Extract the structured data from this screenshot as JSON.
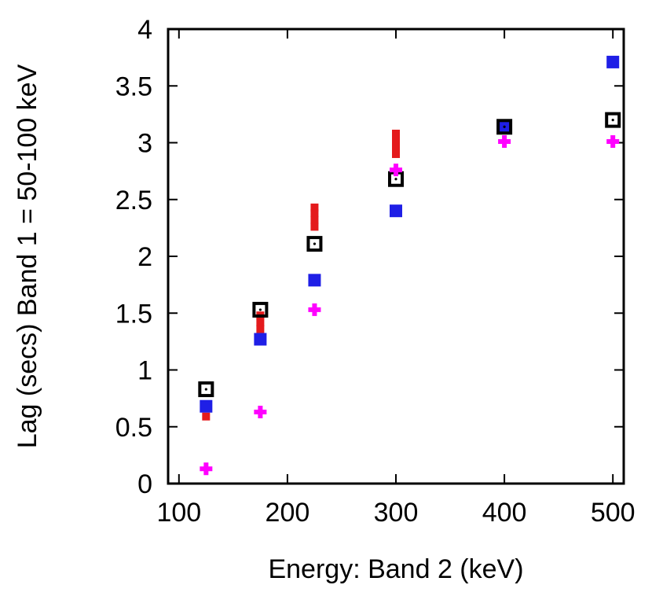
{
  "chart_data": {
    "type": "scatter",
    "title": "",
    "xlabel": "Energy: Band 2 (keV)",
    "ylabel": "Lag (secs) Band 1 = 50-100 keV",
    "xlim": [
      90,
      510
    ],
    "ylim": [
      0,
      4
    ],
    "xticks": [
      100,
      200,
      300,
      400,
      500
    ],
    "yticks": [
      0,
      0.5,
      1,
      1.5,
      2,
      2.5,
      3,
      3.5,
      4
    ],
    "xtick_labels": [
      "100",
      "200",
      "300",
      "400",
      "500"
    ],
    "ytick_labels": [
      "0",
      "0.5",
      "1",
      "1.5",
      "2",
      "2.5",
      "3",
      "3.5",
      "4"
    ],
    "grid": false,
    "legend": "none",
    "series": [
      {
        "name": "red-points",
        "marker": "small-square",
        "color": "#e41a1c",
        "points": [
          {
            "x": 125,
            "y": 0.59
          },
          {
            "x": 175,
            "y": 1.36
          },
          {
            "x": 175,
            "y": 1.42
          },
          {
            "x": 175,
            "y": 1.48
          },
          {
            "x": 225,
            "y": 2.26
          },
          {
            "x": 225,
            "y": 2.32
          },
          {
            "x": 225,
            "y": 2.38
          },
          {
            "x": 225,
            "y": 2.43
          },
          {
            "x": 300,
            "y": 2.9
          },
          {
            "x": 300,
            "y": 2.96
          },
          {
            "x": 300,
            "y": 3.02
          },
          {
            "x": 300,
            "y": 3.08
          }
        ]
      },
      {
        "name": "blue-points",
        "marker": "filled-square",
        "color": "#1f1fe6",
        "points": [
          {
            "x": 125,
            "y": 0.68
          },
          {
            "x": 175,
            "y": 1.27
          },
          {
            "x": 225,
            "y": 1.79
          },
          {
            "x": 300,
            "y": 2.4
          },
          {
            "x": 400,
            "y": 3.13
          },
          {
            "x": 500,
            "y": 3.71
          }
        ]
      },
      {
        "name": "black-points",
        "marker": "open-square",
        "color": "#000000",
        "points": [
          {
            "x": 125,
            "y": 0.83
          },
          {
            "x": 175,
            "y": 1.53
          },
          {
            "x": 225,
            "y": 2.11
          },
          {
            "x": 300,
            "y": 2.68
          },
          {
            "x": 400,
            "y": 3.14
          },
          {
            "x": 500,
            "y": 3.2
          }
        ]
      },
      {
        "name": "magenta-points",
        "marker": "plus",
        "color": "#ff00ff",
        "points": [
          {
            "x": 125,
            "y": 0.13
          },
          {
            "x": 175,
            "y": 0.63
          },
          {
            "x": 225,
            "y": 1.53
          },
          {
            "x": 300,
            "y": 2.76
          },
          {
            "x": 400,
            "y": 3.01
          },
          {
            "x": 500,
            "y": 3.01
          }
        ]
      }
    ]
  }
}
